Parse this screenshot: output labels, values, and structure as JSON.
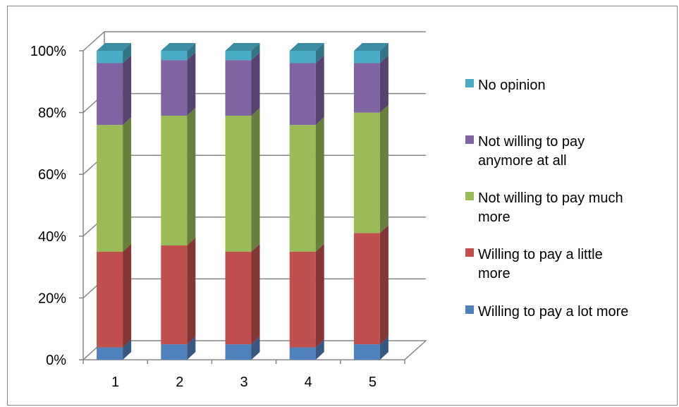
{
  "chart_data": {
    "type": "bar",
    "stacked": true,
    "percent": true,
    "three_d": true,
    "title": "",
    "xlabel": "",
    "ylabel": "",
    "ylim": [
      0,
      100
    ],
    "grid": true,
    "legend_position": "right",
    "categories": [
      "1",
      "2",
      "3",
      "4",
      "5"
    ],
    "y_ticks": [
      "0%",
      "20%",
      "40%",
      "60%",
      "80%",
      "100%"
    ],
    "series": [
      {
        "name": "Willing to pay a lot more",
        "color": "#4F81BD",
        "values": [
          4,
          5,
          5,
          4,
          5
        ]
      },
      {
        "name": "Willing to pay a little more",
        "color": "#C0504D",
        "values": [
          31,
          32,
          30,
          31,
          36
        ]
      },
      {
        "name": "Not willing to pay much more",
        "color": "#9BBB59",
        "values": [
          41,
          42,
          44,
          41,
          39
        ]
      },
      {
        "name": "Not willing to pay anymore at all",
        "color": "#8064A2",
        "values": [
          20,
          18,
          18,
          20,
          16
        ]
      },
      {
        "name": "No opinion",
        "color": "#4BACC6",
        "values": [
          4,
          3,
          3,
          4,
          4
        ]
      }
    ],
    "legend": [
      {
        "lines": [
          "No opinion"
        ],
        "series": 4
      },
      {
        "lines": [
          "Not willing to pay",
          "anymore at all"
        ],
        "series": 3
      },
      {
        "lines": [
          "Not willing to pay much",
          "more"
        ],
        "series": 2
      },
      {
        "lines": [
          "Willing to pay a little",
          "more"
        ],
        "series": 1
      },
      {
        "lines": [
          "Willing to pay a lot more"
        ],
        "series": 0
      }
    ]
  }
}
